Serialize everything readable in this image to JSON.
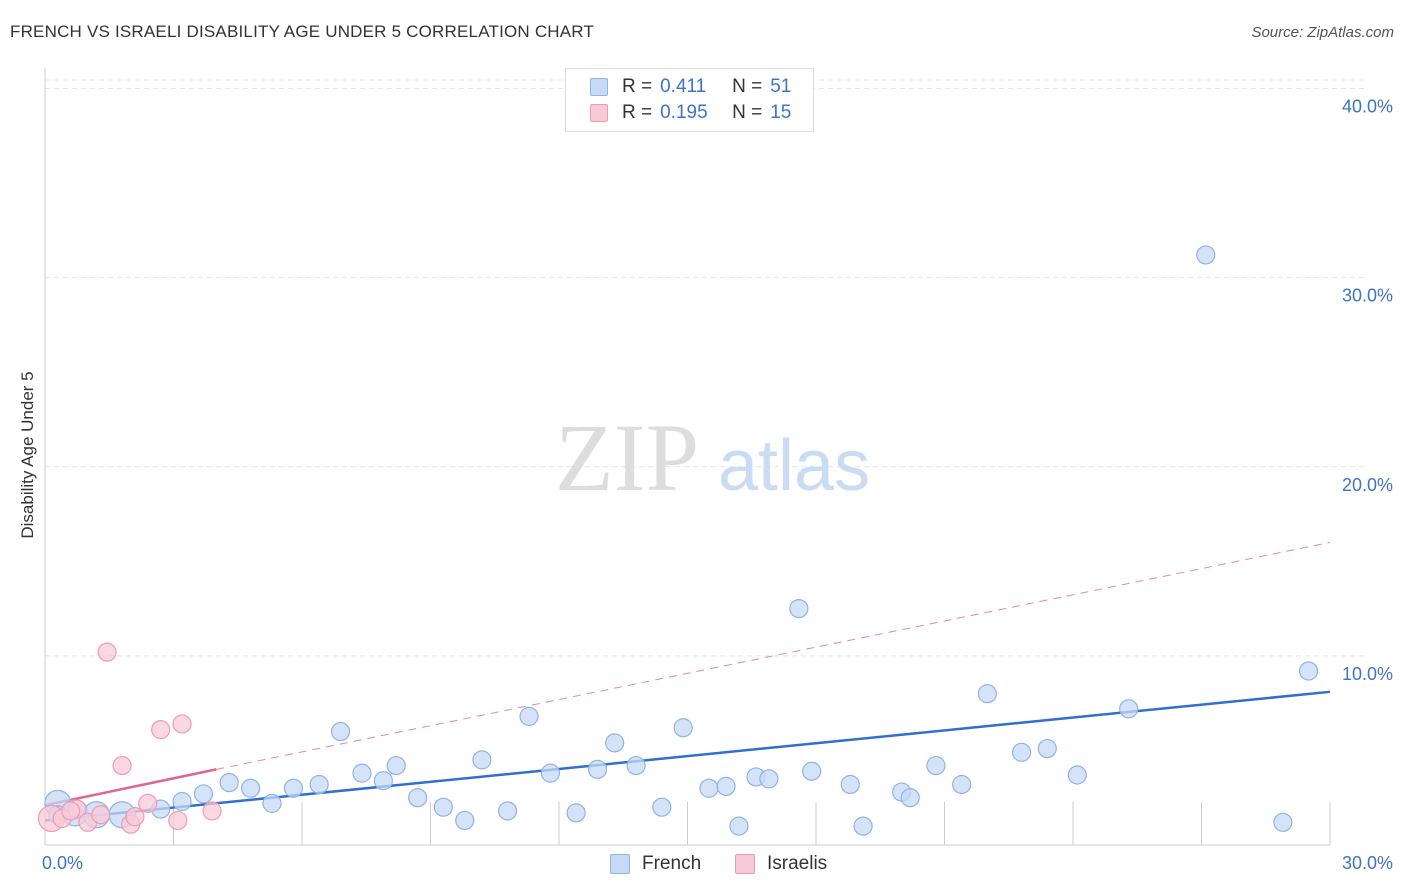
{
  "title": "FRENCH VS ISRAELI DISABILITY AGE UNDER 5 CORRELATION CHART",
  "source": "Source: ZipAtlas.com",
  "watermark": {
    "zip": "ZIP",
    "atlas": "atlas"
  },
  "legend": {
    "rows": [
      {
        "r_label": "R =",
        "r_value": "0.411",
        "n_label": "N =",
        "n_value": "51"
      },
      {
        "r_label": "R =",
        "r_value": "0.195",
        "n_label": "N =",
        "n_value": "15"
      }
    ]
  },
  "colors": {
    "french_fill": "#c6d9f5",
    "french_stroke": "#8fb3e6",
    "french_line": "#2f6fd0",
    "israeli_fill": "#f9c9d7",
    "israeli_stroke": "#f09ab5",
    "israeli_line": "#e0668f",
    "grid": "#e4e4e4",
    "tick_text": "#3d74c6"
  },
  "chart_data": {
    "type": "scatter",
    "title": "FRENCH VS ISRAELI DISABILITY AGE UNDER 5 CORRELATION CHART",
    "xlabel": "",
    "ylabel": "Disability Age Under 5",
    "xlim": [
      0,
      30
    ],
    "ylim": [
      0,
      40
    ],
    "x_tick_labels": [
      {
        "value": 0,
        "label": "0.0%"
      },
      {
        "value": 30,
        "label": "30.0%"
      }
    ],
    "y_tick_labels": [
      {
        "value": 10,
        "label": "10.0%"
      },
      {
        "value": 20,
        "label": "20.0%"
      },
      {
        "value": 30,
        "label": "30.0%"
      },
      {
        "value": 40,
        "label": "40.0%"
      }
    ],
    "grid": true,
    "legend_position": "top-center",
    "series": [
      {
        "name": "French",
        "r": 0.411,
        "n": 51,
        "trend": {
          "x0": 0,
          "y0": 1.3,
          "x1": 30,
          "y1": 8.1
        },
        "points": [
          {
            "x": 0.3,
            "y": 2.2,
            "big": true
          },
          {
            "x": 0.7,
            "y": 1.7,
            "big": true
          },
          {
            "x": 1.2,
            "y": 1.6,
            "big": true
          },
          {
            "x": 1.8,
            "y": 1.6,
            "big": true
          },
          {
            "x": 2.7,
            "y": 1.9
          },
          {
            "x": 3.2,
            "y": 2.3
          },
          {
            "x": 3.7,
            "y": 2.7
          },
          {
            "x": 4.3,
            "y": 3.3
          },
          {
            "x": 4.8,
            "y": 3.0
          },
          {
            "x": 5.3,
            "y": 2.2
          },
          {
            "x": 5.8,
            "y": 3.0
          },
          {
            "x": 6.4,
            "y": 3.2
          },
          {
            "x": 6.9,
            "y": 6.0
          },
          {
            "x": 7.4,
            "y": 3.8
          },
          {
            "x": 7.9,
            "y": 3.4
          },
          {
            "x": 8.2,
            "y": 4.2
          },
          {
            "x": 8.7,
            "y": 2.5
          },
          {
            "x": 9.3,
            "y": 2.0
          },
          {
            "x": 9.8,
            "y": 1.3
          },
          {
            "x": 10.2,
            "y": 4.5
          },
          {
            "x": 10.8,
            "y": 1.8
          },
          {
            "x": 11.3,
            "y": 6.8
          },
          {
            "x": 11.8,
            "y": 3.8
          },
          {
            "x": 12.4,
            "y": 1.7
          },
          {
            "x": 12.9,
            "y": 4.0
          },
          {
            "x": 13.3,
            "y": 5.4
          },
          {
            "x": 13.8,
            "y": 4.2
          },
          {
            "x": 14.4,
            "y": 2.0
          },
          {
            "x": 14.9,
            "y": 6.2
          },
          {
            "x": 15.5,
            "y": 3.0
          },
          {
            "x": 15.9,
            "y": 3.1
          },
          {
            "x": 16.2,
            "y": 1.0
          },
          {
            "x": 16.6,
            "y": 3.6
          },
          {
            "x": 16.9,
            "y": 3.5
          },
          {
            "x": 17.6,
            "y": 12.5
          },
          {
            "x": 17.9,
            "y": 3.9
          },
          {
            "x": 18.8,
            "y": 3.2
          },
          {
            "x": 19.1,
            "y": 1.0
          },
          {
            "x": 20.0,
            "y": 2.8
          },
          {
            "x": 20.2,
            "y": 2.5
          },
          {
            "x": 20.8,
            "y": 4.2
          },
          {
            "x": 21.4,
            "y": 3.2
          },
          {
            "x": 22.0,
            "y": 8.0
          },
          {
            "x": 22.8,
            "y": 4.9
          },
          {
            "x": 23.4,
            "y": 5.1
          },
          {
            "x": 24.1,
            "y": 3.7
          },
          {
            "x": 25.3,
            "y": 7.2
          },
          {
            "x": 27.1,
            "y": 31.2
          },
          {
            "x": 28.9,
            "y": 1.2
          },
          {
            "x": 29.5,
            "y": 9.2
          },
          {
            "x": 0.3,
            "y": 1.6
          }
        ]
      },
      {
        "name": "Israelis",
        "r": 0.195,
        "n": 15,
        "trend": {
          "x0": 0,
          "y0": 2.1,
          "x1": 4.0,
          "y1": 4.0
        },
        "trend_extended": {
          "x0": 4.0,
          "y0": 4.0,
          "x1": 30,
          "y1": 16.0
        },
        "points": [
          {
            "x": 0.15,
            "y": 1.4,
            "big": true
          },
          {
            "x": 0.4,
            "y": 1.4
          },
          {
            "x": 0.75,
            "y": 1.9
          },
          {
            "x": 1.0,
            "y": 1.2
          },
          {
            "x": 1.3,
            "y": 1.6
          },
          {
            "x": 1.45,
            "y": 10.2
          },
          {
            "x": 1.8,
            "y": 4.2
          },
          {
            "x": 2.0,
            "y": 1.1
          },
          {
            "x": 2.1,
            "y": 1.5
          },
          {
            "x": 2.4,
            "y": 2.2
          },
          {
            "x": 2.7,
            "y": 6.1
          },
          {
            "x": 3.1,
            "y": 1.3
          },
          {
            "x": 3.2,
            "y": 6.4
          },
          {
            "x": 3.9,
            "y": 1.8
          },
          {
            "x": 0.6,
            "y": 1.8
          }
        ]
      }
    ]
  }
}
